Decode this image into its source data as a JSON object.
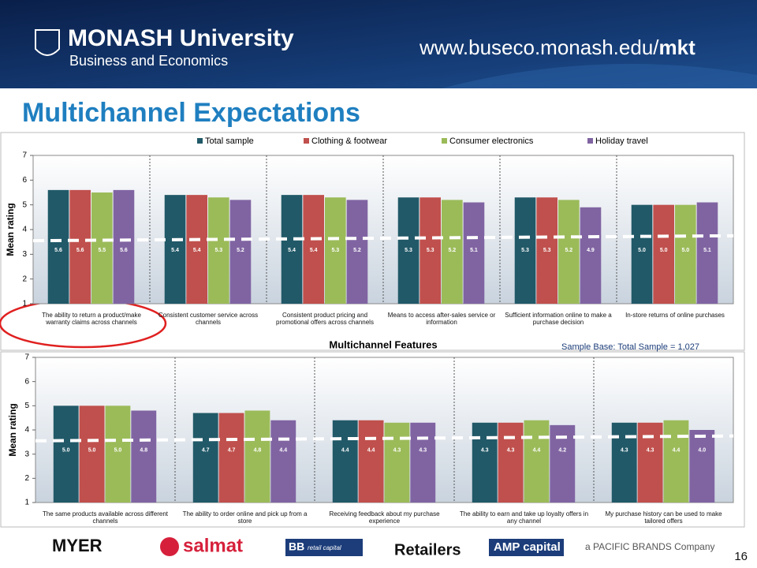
{
  "header": {
    "university": "MONASH University",
    "faculty": "Business and Economics",
    "url": "www.buseco.monash.edu/",
    "url_bold": "mkt"
  },
  "title": "Multichannel Expectations",
  "chart_data": [
    {
      "type": "bar",
      "y_label": "Mean rating",
      "x_label": "Multichannel Features",
      "annotation": "Sample Base: Total Sample = 1,027",
      "categories": [
        "The ability to return a product/make warranty claims across channels",
        "Consistent customer service across channels",
        "Consistent product pricing and promotional offers across channels",
        "Means to access after-sales service or information",
        "Sufficient information online to make a purchase decision",
        "In-store returns of online purchases"
      ],
      "series": [
        {
          "name": "Total sample",
          "color": "#215968",
          "values": [
            5.6,
            5.4,
            5.4,
            5.3,
            5.3,
            5.0
          ],
          "value_labels": [
            "5.6",
            "5.4",
            "5.4",
            "5.3",
            "5.3",
            "5.0"
          ]
        },
        {
          "name": "Clothing & footwear",
          "color": "#c0504d",
          "values": [
            5.6,
            5.4,
            5.4,
            5.3,
            5.3,
            5.0
          ],
          "value_labels": [
            "5.6",
            "5.4",
            "5.4",
            "5.3",
            "5.3",
            "5.0"
          ]
        },
        {
          "name": "Consumer electronics",
          "color": "#9bbb59",
          "values": [
            5.5,
            5.3,
            5.3,
            5.2,
            5.2,
            5.0
          ],
          "value_labels": [
            "5.5",
            "5.3",
            "5.3",
            "5.2",
            "5.2",
            "5.0"
          ]
        },
        {
          "name": "Holiday travel",
          "color": "#8064a2",
          "values": [
            5.6,
            5.2,
            5.2,
            5.1,
            4.9,
            5.1
          ],
          "value_labels": [
            "5.6",
            "5.2",
            "5.2",
            "5.1",
            "4.9",
            "5.1"
          ]
        }
      ],
      "ylim": [
        1,
        7
      ],
      "yticks": [
        1,
        2,
        3,
        4,
        5,
        6,
        7
      ],
      "reference_line": {
        "from": 3.55,
        "to": 3.75
      },
      "legend": "top"
    },
    {
      "type": "bar",
      "y_label": "Mean rating",
      "categories": [
        "The same products available across different channels",
        "The ability to order online and pick up from a store",
        "Receiving feedback about my purchase experience",
        "The ability to earn and take up loyalty offers in any channel",
        "My purchase history can be used to make tailored offers"
      ],
      "series": [
        {
          "color": "#215968",
          "values": [
            5.0,
            4.7,
            4.4,
            4.3,
            4.3
          ],
          "value_labels": [
            "5.0",
            "4.7",
            "4.4",
            "4.3",
            "4.3"
          ]
        },
        {
          "color": "#c0504d",
          "values": [
            5.0,
            4.7,
            4.4,
            4.3,
            4.3
          ],
          "value_labels": [
            "5.0",
            "4.7",
            "4.4",
            "4.3",
            "4.3"
          ]
        },
        {
          "color": "#9bbb59",
          "values": [
            5.0,
            4.8,
            4.3,
            4.4,
            4.4
          ],
          "value_labels": [
            "5.0",
            "4.8",
            "4.3",
            "4.4",
            "4.4"
          ]
        },
        {
          "color": "#8064a2",
          "values": [
            4.8,
            4.4,
            4.3,
            4.2,
            4.0
          ],
          "value_labels": [
            "4.8",
            "4.4",
            "4.3",
            "4.2",
            "4.0"
          ]
        }
      ],
      "ylim": [
        1,
        7
      ],
      "yticks": [
        1,
        2,
        3,
        4,
        5,
        6,
        7
      ],
      "reference_line": {
        "from": 3.55,
        "to": 3.75
      }
    }
  ],
  "footer": {
    "logos": [
      "MYER",
      "salmat",
      "BB",
      "retail capital",
      "Retailers",
      "AMP capital",
      "a PACIFIC BRANDS Company"
    ],
    "page": "16"
  }
}
